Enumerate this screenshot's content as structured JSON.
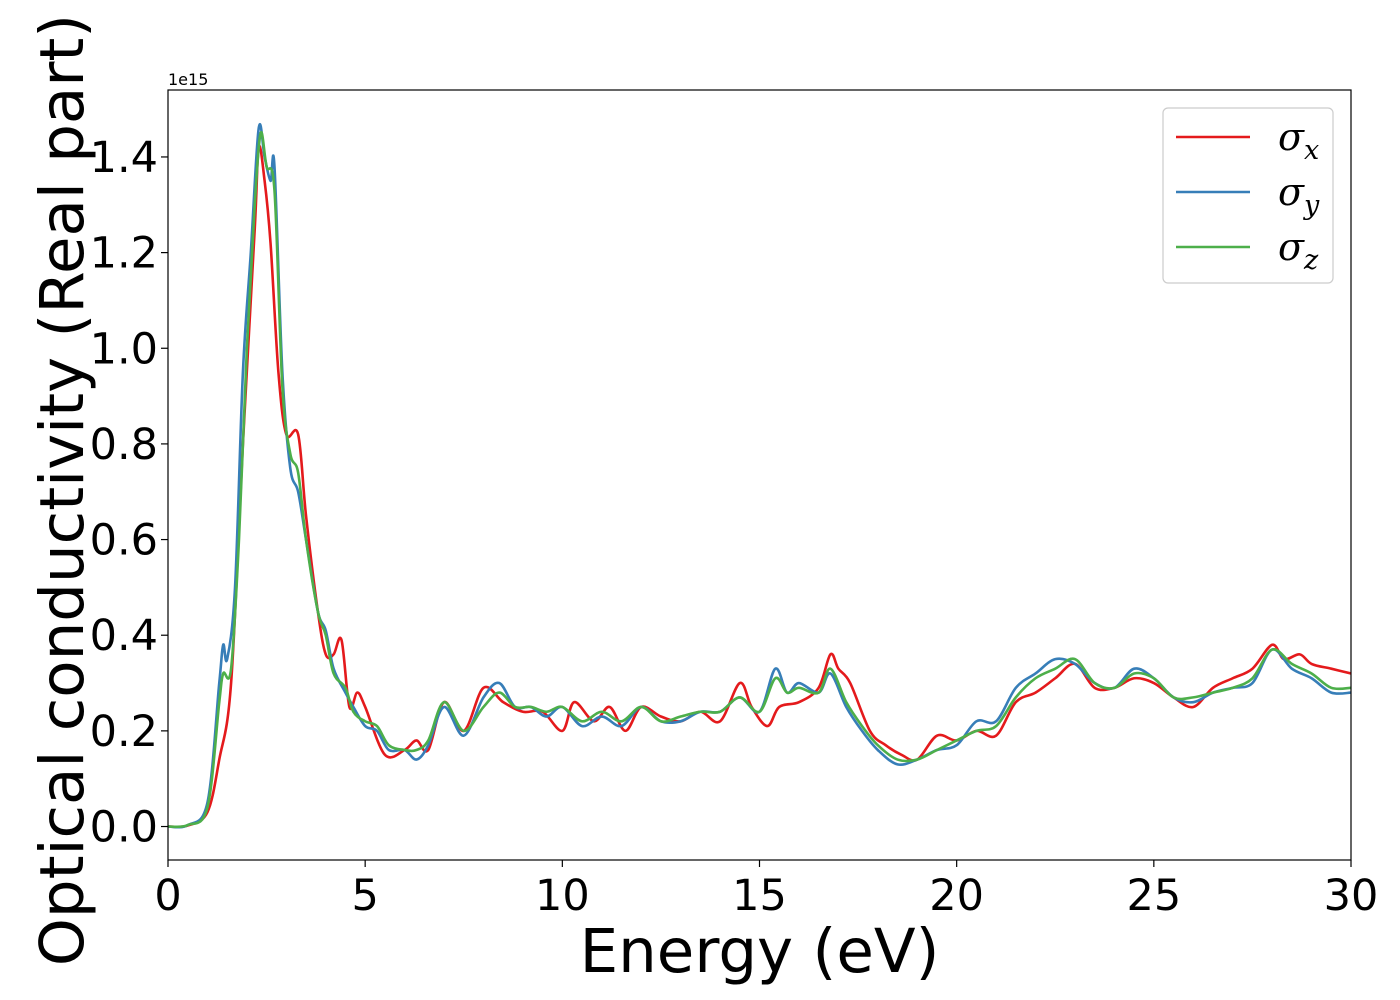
{
  "chart_data": {
    "type": "line",
    "xlabel": "Energy (eV)",
    "ylabel": "Optical conductivity (Real part)",
    "y_offset_label": "1e15",
    "y_scale": 1000000000000000.0,
    "xlim": [
      0,
      30
    ],
    "ylim": [
      -0.07,
      1.54
    ],
    "grid": false,
    "legend_position": "top-right",
    "xticks": [
      0,
      5,
      10,
      15,
      20,
      25,
      30
    ],
    "xtick_labels": [
      "0",
      "5",
      "10",
      "15",
      "20",
      "25",
      "30"
    ],
    "yticks": [
      0.0,
      0.2,
      0.4,
      0.6,
      0.8,
      1.0,
      1.2,
      1.4
    ],
    "ytick_labels": [
      "0.0",
      "0.2",
      "0.4",
      "0.6",
      "0.8",
      "1.0",
      "1.2",
      "1.4"
    ],
    "series": [
      {
        "name": "σx",
        "legend_base": "σ",
        "legend_sub": "x",
        "color": "#e41a1c",
        "points": [
          [
            0,
            0
          ],
          [
            0.5,
            0.002
          ],
          [
            1.0,
            0.03
          ],
          [
            1.3,
            0.14
          ],
          [
            1.6,
            0.3
          ],
          [
            1.9,
            0.8
          ],
          [
            2.2,
            1.25
          ],
          [
            2.3,
            1.42
          ],
          [
            2.45,
            1.35
          ],
          [
            2.6,
            1.22
          ],
          [
            2.8,
            0.95
          ],
          [
            3.0,
            0.82
          ],
          [
            3.3,
            0.82
          ],
          [
            3.5,
            0.65
          ],
          [
            3.8,
            0.45
          ],
          [
            4.0,
            0.36
          ],
          [
            4.2,
            0.36
          ],
          [
            4.4,
            0.39
          ],
          [
            4.6,
            0.25
          ],
          [
            4.8,
            0.28
          ],
          [
            5.0,
            0.25
          ],
          [
            5.5,
            0.15
          ],
          [
            6.0,
            0.16
          ],
          [
            6.3,
            0.18
          ],
          [
            6.6,
            0.16
          ],
          [
            7.0,
            0.26
          ],
          [
            7.5,
            0.2
          ],
          [
            8.0,
            0.29
          ],
          [
            8.5,
            0.26
          ],
          [
            9.0,
            0.24
          ],
          [
            9.5,
            0.24
          ],
          [
            10.0,
            0.2
          ],
          [
            10.3,
            0.26
          ],
          [
            10.8,
            0.22
          ],
          [
            11.2,
            0.25
          ],
          [
            11.6,
            0.2
          ],
          [
            12.0,
            0.25
          ],
          [
            12.5,
            0.23
          ],
          [
            13.0,
            0.22
          ],
          [
            13.5,
            0.24
          ],
          [
            14.0,
            0.22
          ],
          [
            14.5,
            0.3
          ],
          [
            14.8,
            0.25
          ],
          [
            15.2,
            0.21
          ],
          [
            15.5,
            0.25
          ],
          [
            16.0,
            0.26
          ],
          [
            16.5,
            0.29
          ],
          [
            16.8,
            0.36
          ],
          [
            17.0,
            0.33
          ],
          [
            17.3,
            0.3
          ],
          [
            17.8,
            0.2
          ],
          [
            18.2,
            0.17
          ],
          [
            18.6,
            0.15
          ],
          [
            19.0,
            0.14
          ],
          [
            19.5,
            0.19
          ],
          [
            20.0,
            0.18
          ],
          [
            20.5,
            0.2
          ],
          [
            21.0,
            0.19
          ],
          [
            21.5,
            0.26
          ],
          [
            22.0,
            0.28
          ],
          [
            22.5,
            0.31
          ],
          [
            23.0,
            0.34
          ],
          [
            23.5,
            0.29
          ],
          [
            24.0,
            0.29
          ],
          [
            24.5,
            0.31
          ],
          [
            25.0,
            0.3
          ],
          [
            25.5,
            0.27
          ],
          [
            26.0,
            0.25
          ],
          [
            26.5,
            0.29
          ],
          [
            27.0,
            0.31
          ],
          [
            27.5,
            0.33
          ],
          [
            28.0,
            0.38
          ],
          [
            28.3,
            0.35
          ],
          [
            28.7,
            0.36
          ],
          [
            29.0,
            0.34
          ],
          [
            29.5,
            0.33
          ],
          [
            30.0,
            0.32
          ]
        ]
      },
      {
        "name": "σy",
        "legend_base": "σ",
        "legend_sub": "y",
        "color": "#377eb8",
        "points": [
          [
            0,
            0
          ],
          [
            0.5,
            0.003
          ],
          [
            1.0,
            0.05
          ],
          [
            1.3,
            0.3
          ],
          [
            1.4,
            0.38
          ],
          [
            1.5,
            0.35
          ],
          [
            1.7,
            0.5
          ],
          [
            1.9,
            0.95
          ],
          [
            2.1,
            1.2
          ],
          [
            2.3,
            1.46
          ],
          [
            2.45,
            1.4
          ],
          [
            2.6,
            1.35
          ],
          [
            2.7,
            1.38
          ],
          [
            2.9,
            0.95
          ],
          [
            3.1,
            0.75
          ],
          [
            3.3,
            0.7
          ],
          [
            3.5,
            0.6
          ],
          [
            3.8,
            0.45
          ],
          [
            4.0,
            0.41
          ],
          [
            4.2,
            0.33
          ],
          [
            4.5,
            0.28
          ],
          [
            4.7,
            0.25
          ],
          [
            5.0,
            0.21
          ],
          [
            5.3,
            0.2
          ],
          [
            5.6,
            0.16
          ],
          [
            6.0,
            0.16
          ],
          [
            6.3,
            0.14
          ],
          [
            6.6,
            0.17
          ],
          [
            7.0,
            0.25
          ],
          [
            7.5,
            0.19
          ],
          [
            8.0,
            0.27
          ],
          [
            8.4,
            0.3
          ],
          [
            8.8,
            0.25
          ],
          [
            9.2,
            0.25
          ],
          [
            9.6,
            0.23
          ],
          [
            10.0,
            0.25
          ],
          [
            10.5,
            0.21
          ],
          [
            11.0,
            0.23
          ],
          [
            11.5,
            0.21
          ],
          [
            12.0,
            0.25
          ],
          [
            12.5,
            0.22
          ],
          [
            13.0,
            0.22
          ],
          [
            13.5,
            0.24
          ],
          [
            14.0,
            0.24
          ],
          [
            14.5,
            0.27
          ],
          [
            15.0,
            0.24
          ],
          [
            15.4,
            0.33
          ],
          [
            15.7,
            0.28
          ],
          [
            16.0,
            0.3
          ],
          [
            16.5,
            0.28
          ],
          [
            16.8,
            0.32
          ],
          [
            17.2,
            0.25
          ],
          [
            17.6,
            0.2
          ],
          [
            18.0,
            0.16
          ],
          [
            18.5,
            0.13
          ],
          [
            19.0,
            0.14
          ],
          [
            19.5,
            0.16
          ],
          [
            20.0,
            0.17
          ],
          [
            20.5,
            0.22
          ],
          [
            21.0,
            0.22
          ],
          [
            21.5,
            0.29
          ],
          [
            22.0,
            0.32
          ],
          [
            22.5,
            0.35
          ],
          [
            23.0,
            0.34
          ],
          [
            23.5,
            0.3
          ],
          [
            24.0,
            0.29
          ],
          [
            24.5,
            0.33
          ],
          [
            25.0,
            0.31
          ],
          [
            25.5,
            0.27
          ],
          [
            26.0,
            0.26
          ],
          [
            26.5,
            0.28
          ],
          [
            27.0,
            0.29
          ],
          [
            27.5,
            0.3
          ],
          [
            28.0,
            0.37
          ],
          [
            28.5,
            0.33
          ],
          [
            29.0,
            0.31
          ],
          [
            29.5,
            0.28
          ],
          [
            30.0,
            0.28
          ]
        ]
      },
      {
        "name": "σz",
        "legend_base": "σ",
        "legend_sub": "z",
        "color": "#4daf4a",
        "points": [
          [
            0,
            0
          ],
          [
            0.5,
            0.003
          ],
          [
            1.0,
            0.04
          ],
          [
            1.3,
            0.26
          ],
          [
            1.4,
            0.32
          ],
          [
            1.6,
            0.33
          ],
          [
            1.8,
            0.6
          ],
          [
            2.0,
            1.0
          ],
          [
            2.2,
            1.3
          ],
          [
            2.35,
            1.45
          ],
          [
            2.5,
            1.38
          ],
          [
            2.7,
            1.33
          ],
          [
            2.9,
            0.92
          ],
          [
            3.1,
            0.78
          ],
          [
            3.3,
            0.74
          ],
          [
            3.5,
            0.6
          ],
          [
            3.8,
            0.45
          ],
          [
            4.0,
            0.4
          ],
          [
            4.2,
            0.32
          ],
          [
            4.5,
            0.29
          ],
          [
            4.7,
            0.24
          ],
          [
            5.0,
            0.22
          ],
          [
            5.3,
            0.21
          ],
          [
            5.6,
            0.17
          ],
          [
            6.0,
            0.16
          ],
          [
            6.3,
            0.16
          ],
          [
            6.6,
            0.18
          ],
          [
            7.0,
            0.26
          ],
          [
            7.5,
            0.2
          ],
          [
            8.0,
            0.25
          ],
          [
            8.4,
            0.28
          ],
          [
            8.8,
            0.25
          ],
          [
            9.2,
            0.25
          ],
          [
            9.6,
            0.24
          ],
          [
            10.0,
            0.25
          ],
          [
            10.5,
            0.22
          ],
          [
            11.0,
            0.24
          ],
          [
            11.5,
            0.22
          ],
          [
            12.0,
            0.25
          ],
          [
            12.5,
            0.22
          ],
          [
            13.0,
            0.23
          ],
          [
            13.5,
            0.24
          ],
          [
            14.0,
            0.24
          ],
          [
            14.5,
            0.27
          ],
          [
            15.0,
            0.24
          ],
          [
            15.4,
            0.31
          ],
          [
            15.7,
            0.28
          ],
          [
            16.0,
            0.29
          ],
          [
            16.5,
            0.28
          ],
          [
            16.8,
            0.33
          ],
          [
            17.2,
            0.26
          ],
          [
            17.6,
            0.21
          ],
          [
            18.0,
            0.17
          ],
          [
            18.5,
            0.14
          ],
          [
            19.0,
            0.14
          ],
          [
            19.5,
            0.16
          ],
          [
            20.0,
            0.18
          ],
          [
            20.5,
            0.2
          ],
          [
            21.0,
            0.21
          ],
          [
            21.5,
            0.27
          ],
          [
            22.0,
            0.31
          ],
          [
            22.5,
            0.33
          ],
          [
            23.0,
            0.35
          ],
          [
            23.5,
            0.3
          ],
          [
            24.0,
            0.29
          ],
          [
            24.5,
            0.32
          ],
          [
            25.0,
            0.31
          ],
          [
            25.5,
            0.27
          ],
          [
            26.0,
            0.27
          ],
          [
            26.5,
            0.28
          ],
          [
            27.0,
            0.29
          ],
          [
            27.5,
            0.31
          ],
          [
            28.0,
            0.37
          ],
          [
            28.5,
            0.34
          ],
          [
            29.0,
            0.32
          ],
          [
            29.5,
            0.29
          ],
          [
            30.0,
            0.29
          ]
        ]
      }
    ]
  }
}
